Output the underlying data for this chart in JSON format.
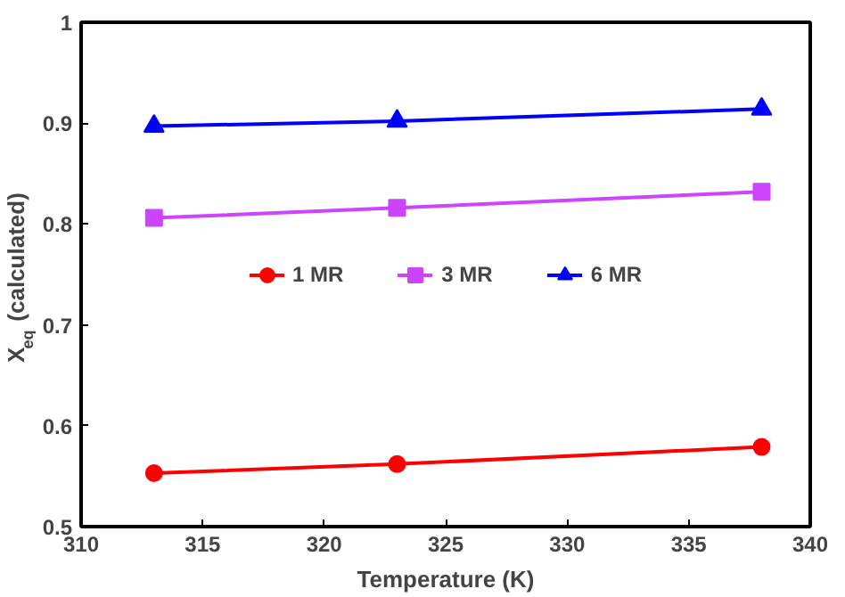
{
  "chart_data": {
    "type": "line",
    "xlabel": "Temperature (K)",
    "ylabel": "X$_{eq}$ (calculated)",
    "x": [
      313,
      323,
      338
    ],
    "series": [
      {
        "name": "1 MR",
        "color": "#ff0000",
        "marker": "circle",
        "values": [
          0.553,
          0.562,
          0.579
        ]
      },
      {
        "name": "3 MR",
        "color": "#cc44ff",
        "marker": "square",
        "values": [
          0.806,
          0.816,
          0.832
        ]
      },
      {
        "name": "6 MR",
        "color": "#0000ff",
        "marker": "triangle",
        "values": [
          0.897,
          0.902,
          0.914
        ]
      }
    ],
    "xlim": [
      310,
      340
    ],
    "xticks": [
      310,
      315,
      320,
      325,
      330,
      335,
      340
    ],
    "ylim": [
      0.5,
      1
    ],
    "yticks": [
      {
        "value": 0.5,
        "label": "0.5"
      },
      {
        "value": 0.6,
        "label": "0.6"
      },
      {
        "value": 0.7,
        "label": "0.7"
      },
      {
        "value": 0.8,
        "label": "0.8"
      },
      {
        "value": 0.9,
        "label": "0.9"
      },
      {
        "value": 1,
        "label": "1"
      }
    ],
    "grid": false,
    "legend": "center",
    "line_style": "solid"
  }
}
